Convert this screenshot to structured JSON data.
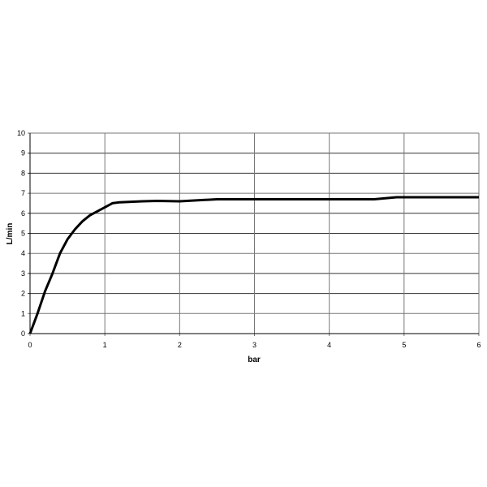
{
  "chart_data": {
    "type": "line",
    "title": "",
    "xlabel": "bar",
    "ylabel": "L/min",
    "xlim": [
      0,
      6
    ],
    "ylim": [
      0,
      10
    ],
    "x_ticks": [
      "0",
      "1",
      "2",
      "3",
      "4",
      "5",
      "6"
    ],
    "y_ticks": [
      "0",
      "1",
      "2",
      "3",
      "4",
      "5",
      "6",
      "7",
      "8",
      "9",
      "10"
    ],
    "grid": true,
    "legend": "none",
    "line_color": "#000000",
    "series": [
      {
        "x": [
          0,
          0.1,
          0.2,
          0.3,
          0.4,
          0.5,
          0.6,
          0.7,
          0.8,
          0.9,
          1.0,
          1.1,
          1.2,
          1.5,
          1.7,
          2.0,
          2.5,
          3.0,
          4.0,
          4.6,
          4.9,
          5.0,
          6.0
        ],
        "y": [
          0,
          1.0,
          2.1,
          3.0,
          4.0,
          4.7,
          5.2,
          5.6,
          5.9,
          6.1,
          6.3,
          6.5,
          6.55,
          6.6,
          6.62,
          6.6,
          6.7,
          6.7,
          6.7,
          6.7,
          6.8,
          6.8,
          6.8
        ]
      }
    ]
  }
}
